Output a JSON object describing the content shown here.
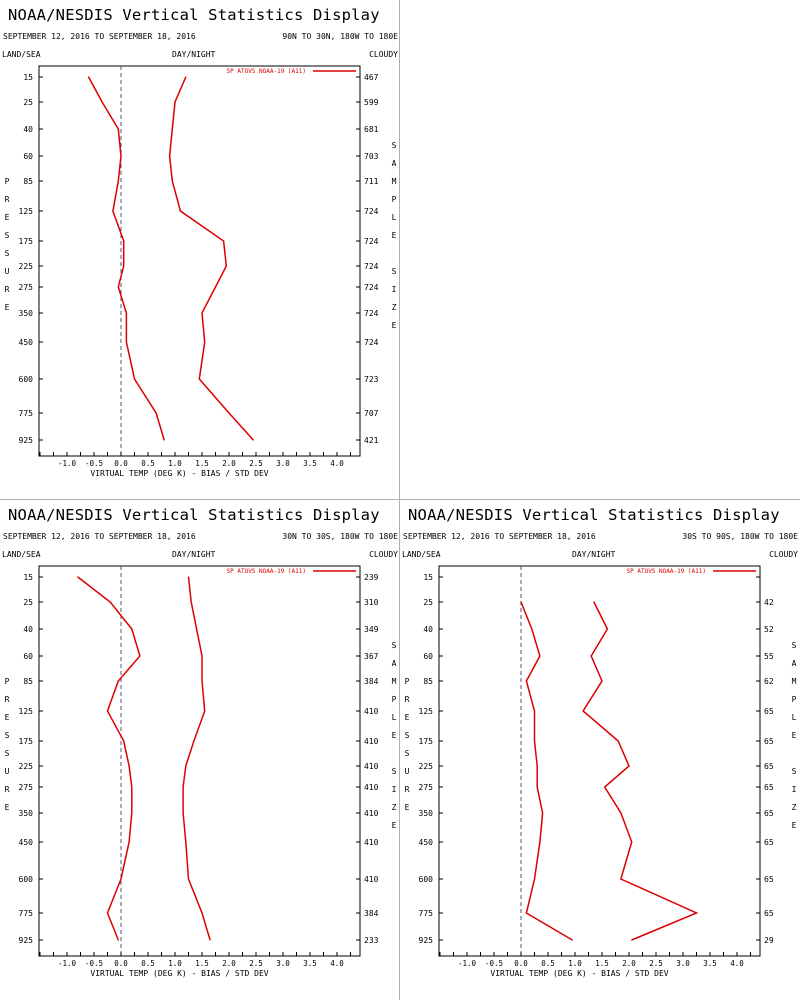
{
  "display_title": "NOAA/NESDIS Vertical Statistics Display",
  "labels": {
    "land_sea": "LAND/SEA",
    "day_night": "DAY/NIGHT",
    "cloudy": "CLOUDY",
    "pressure_letters": [
      "P",
      "R",
      "E",
      "S",
      "S",
      "U",
      "R",
      "E"
    ],
    "sample_letters": [
      "S",
      "A",
      "M",
      "P",
      "L",
      "E",
      "",
      "S",
      "I",
      "Z",
      "E"
    ]
  },
  "colors": {
    "series": "#dd0000",
    "zero_line": "#555577",
    "axis": "#000000"
  },
  "chart_data": [
    {
      "type": "line",
      "title": "NOAA/NESDIS Vertical Statistics Display",
      "dates": "SEPTEMBER 12, 2016 TO SEPTEMBER 18, 2016",
      "region": "90N TO 30N, 180W TO 180E",
      "xlabel": "VIRTUAL TEMP (DEG K) - BIAS / STD DEV",
      "ylabel": "PRESSURE",
      "right_label": "SAMPLE SIZE",
      "xlim": [
        -1.5,
        4.5
      ],
      "x_ticks": [
        "-1.0",
        "-0.5",
        "0.0",
        "0.5",
        "1.0",
        "1.5",
        "2.0",
        "2.5",
        "3.0",
        "3.5",
        "4.0"
      ],
      "pressure_levels": [
        "15",
        "25",
        "40",
        "60",
        "85",
        "125",
        "175",
        "225",
        "275",
        "350",
        "450",
        "600",
        "775",
        "925"
      ],
      "sample_size": [
        "467",
        "599",
        "681",
        "703",
        "711",
        "724",
        "724",
        "724",
        "724",
        "724",
        "724",
        "723",
        "707",
        "421"
      ],
      "legend": "SP ATOVS NOAA-19 (A11)",
      "series": [
        {
          "name": "BIAS",
          "values": [
            -0.6,
            -0.35,
            -0.05,
            0.0,
            -0.05,
            -0.15,
            0.05,
            0.05,
            -0.05,
            0.1,
            0.1,
            0.25,
            0.65,
            0.8
          ]
        },
        {
          "name": "STD DEV",
          "values": [
            1.2,
            1.0,
            0.95,
            0.9,
            0.95,
            1.1,
            1.9,
            1.95,
            1.75,
            1.5,
            1.55,
            1.45,
            2.0,
            2.45
          ]
        }
      ]
    },
    {
      "type": "line",
      "title": "NOAA/NESDIS Vertical Statistics Display",
      "dates": "SEPTEMBER 12, 2016 TO SEPTEMBER 18, 2016",
      "region": "30N TO 30S, 180W TO 180E",
      "xlabel": "VIRTUAL TEMP (DEG K) - BIAS / STD DEV",
      "ylabel": "PRESSURE",
      "right_label": "SAMPLE SIZE",
      "xlim": [
        -1.5,
        4.5
      ],
      "x_ticks": [
        "-1.0",
        "-0.5",
        "0.0",
        "0.5",
        "1.0",
        "1.5",
        "2.0",
        "2.5",
        "3.0",
        "3.5",
        "4.0"
      ],
      "pressure_levels": [
        "15",
        "25",
        "40",
        "60",
        "85",
        "125",
        "175",
        "225",
        "275",
        "350",
        "450",
        "600",
        "775",
        "925"
      ],
      "sample_size": [
        "239",
        "310",
        "349",
        "367",
        "384",
        "410",
        "410",
        "410",
        "410",
        "410",
        "410",
        "410",
        "384",
        "233"
      ],
      "legend": "SP ATOVS NOAA-19 (A11)",
      "series": [
        {
          "name": "BIAS",
          "values": [
            -0.8,
            -0.2,
            0.2,
            0.35,
            -0.05,
            -0.25,
            0.05,
            0.15,
            0.2,
            0.2,
            0.15,
            0.0,
            -0.25,
            -0.05
          ]
        },
        {
          "name": "STD DEV",
          "values": [
            1.25,
            1.3,
            1.4,
            1.5,
            1.5,
            1.55,
            1.35,
            1.2,
            1.15,
            1.15,
            1.2,
            1.25,
            1.5,
            1.65
          ]
        }
      ]
    },
    {
      "type": "line",
      "title": "NOAA/NESDIS Vertical Statistics Display",
      "dates": "SEPTEMBER 12, 2016 TO SEPTEMBER 18, 2016",
      "region": "30S TO 90S, 180W TO 180E",
      "xlabel": "VIRTUAL TEMP (DEG K) - BIAS / STD DEV",
      "ylabel": "PRESSURE",
      "right_label": "SAMPLE SIZE",
      "xlim": [
        -1.5,
        4.5
      ],
      "x_ticks": [
        "-1.0",
        "-0.5",
        "0.0",
        "0.5",
        "1.0",
        "1.5",
        "2.0",
        "2.5",
        "3.0",
        "3.5",
        "4.0"
      ],
      "pressure_levels": [
        "15",
        "25",
        "40",
        "60",
        "85",
        "125",
        "175",
        "225",
        "275",
        "350",
        "450",
        "600",
        "775",
        "925"
      ],
      "sample_size": [
        "",
        "42",
        "52",
        "55",
        "62",
        "65",
        "65",
        "65",
        "65",
        "65",
        "65",
        "65",
        "65",
        "29"
      ],
      "legend": "SP ATOVS NOAA-19 (A11)",
      "series": [
        {
          "name": "BIAS",
          "values": [
            null,
            0.0,
            0.2,
            0.35,
            0.1,
            0.25,
            0.25,
            0.3,
            0.3,
            0.4,
            0.35,
            0.25,
            0.1,
            0.95
          ]
        },
        {
          "name": "STD DEV",
          "values": [
            null,
            1.35,
            1.6,
            1.3,
            1.5,
            1.15,
            1.8,
            2.0,
            1.55,
            1.85,
            2.05,
            1.85,
            3.25,
            2.05
          ]
        }
      ]
    }
  ]
}
